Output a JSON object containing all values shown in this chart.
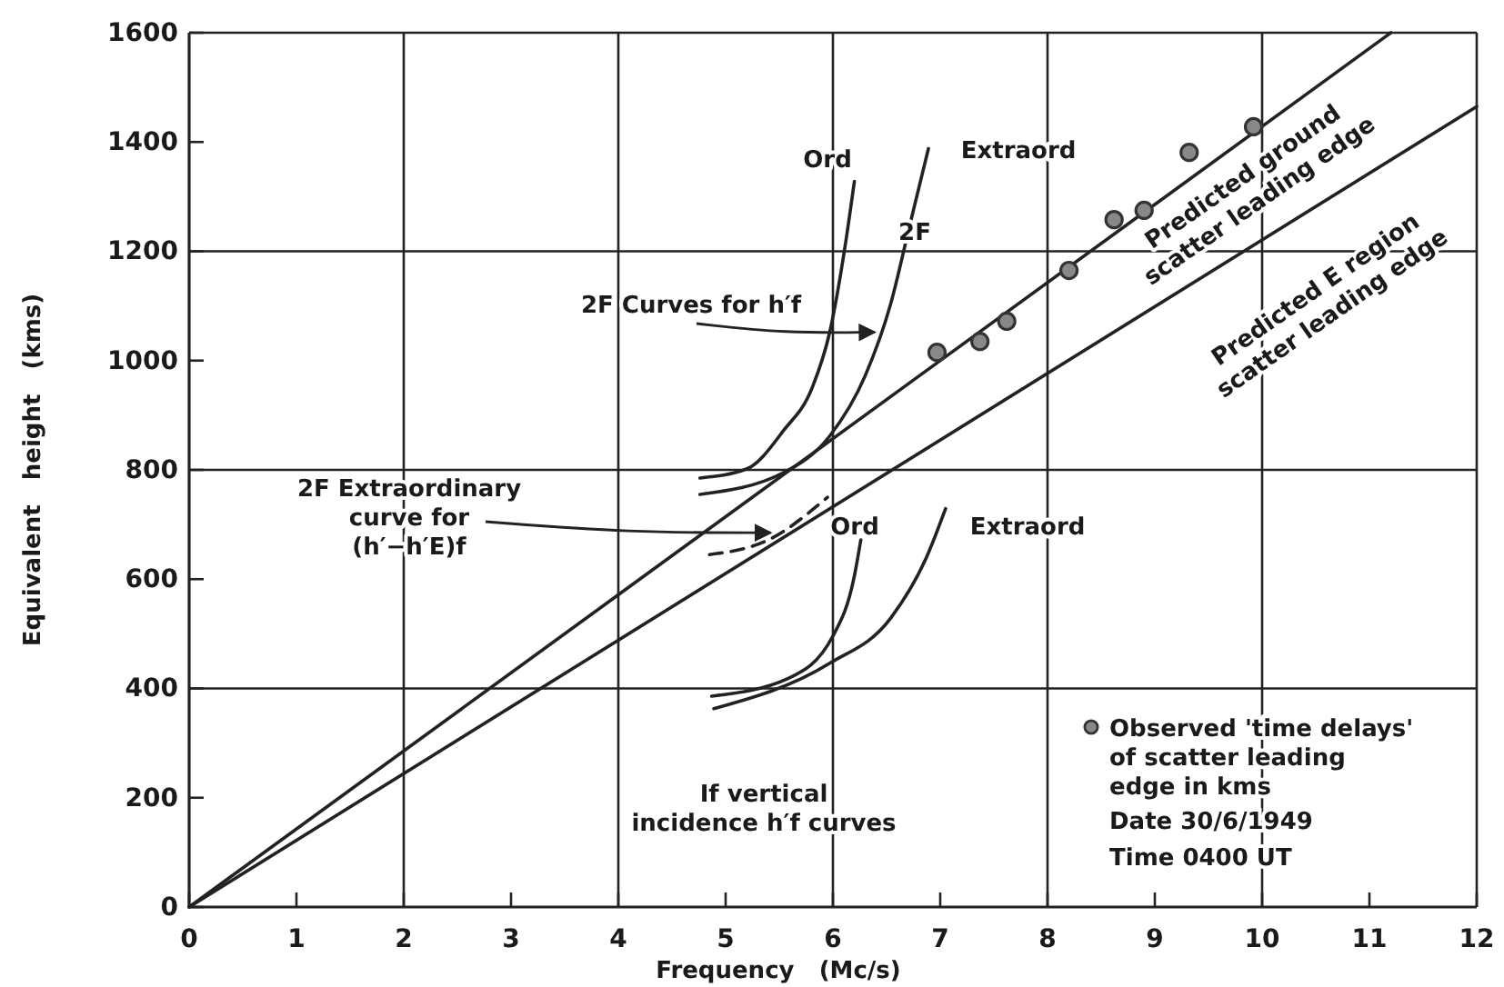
{
  "chart_data": {
    "type": "line",
    "xlabel": "Frequency   (Mc/s)",
    "ylabel": "Equivalent   height   (kms)",
    "xlim": [
      0,
      12
    ],
    "xticks": [
      0,
      1,
      2,
      3,
      4,
      5,
      6,
      7,
      8,
      9,
      10,
      11,
      12
    ],
    "ylim": [
      0,
      1600
    ],
    "yticks": [
      0,
      200,
      400,
      600,
      800,
      1000,
      1200,
      1400,
      1600
    ],
    "grid": true,
    "legend": "bottom right",
    "marker": "none",
    "line_style": "solid",
    "series": [
      {
        "color": "#222222",
        "x": [
          0,
          11.2
        ],
        "values": [
          0,
          1600
        ]
      },
      {
        "color": "#222222",
        "x": [
          0,
          12
        ],
        "values": [
          0,
          1465
        ]
      },
      {
        "color": "#222222",
        "x": [
          4.76,
          5.2,
          5.54,
          5.81,
          5.97,
          6.12,
          6.2
        ],
        "values": [
          785,
          802,
          872,
          952,
          1052,
          1218,
          1328
        ]
      },
      {
        "color": "#222222",
        "x": [
          4.76,
          5.54,
          5.97,
          6.3,
          6.54,
          6.72,
          6.89
        ],
        "values": [
          755,
          795,
          862,
          972,
          1105,
          1251,
          1388
        ]
      },
      {
        "color": "#222222",
        "x": [
          4.87,
          5.59,
          6.0,
          6.2,
          6.26
        ],
        "values": [
          386,
          419,
          496,
          606,
          672
        ]
      },
      {
        "color": "#222222",
        "x": [
          4.89,
          5.97,
          6.54,
          6.87,
          7.05
        ],
        "values": [
          363,
          446,
          529,
          639,
          729
        ]
      },
      {
        "color": "#222222",
        "line_style": "dashed",
        "x": [
          4.85,
          5.4,
          5.95
        ],
        "values": [
          645,
          672,
          750
        ]
      },
      {
        "type": "scatter",
        "name": "Observed 'time delays'\nof scatter leading\nedge in kms",
        "color": "#333333",
        "marker": "circle",
        "x": [
          6.97,
          7.37,
          7.62,
          8.2,
          8.62,
          8.9,
          9.32,
          9.92
        ],
        "values": [
          1015,
          1035,
          1072,
          1165,
          1258,
          1275,
          1381,
          1428
        ]
      }
    ],
    "annotations": [
      "Ord",
      "Extraord",
      "2F",
      {
        "text": "2F Curves for h′f",
        "x": 6.39,
        "y": 1052
      },
      {
        "text": "2F Extraordinary\ncurve for\n(h′−h′E)f",
        "x": 5.42,
        "y": 685
      },
      "Ord",
      "Extraord",
      "If vertical\nincidence h′f curves",
      "Predicted ground\nscatter leading edge",
      "Predicted E region\nscatter leading edge",
      "Date 30/6/1949",
      "Time 0400 UT"
    ]
  }
}
